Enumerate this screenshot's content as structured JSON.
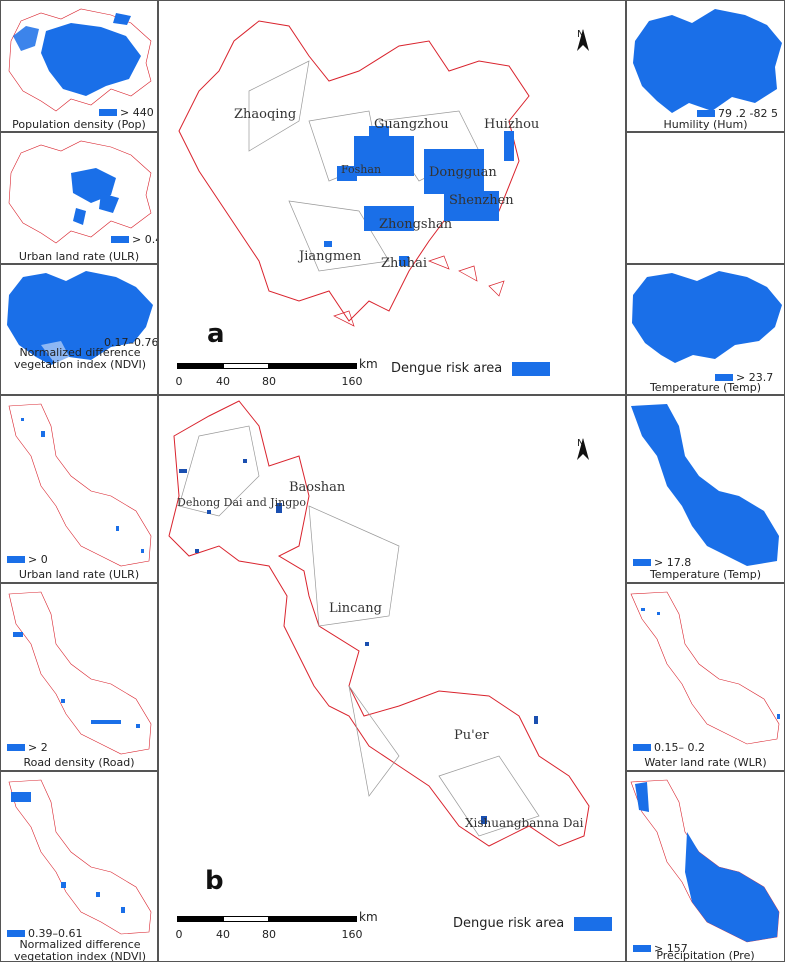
{
  "colors": {
    "risk": "#1a6fe8",
    "boundary_outer": "#d9232d",
    "boundary_inner": "#999999"
  },
  "panel_a": {
    "letter": "a",
    "cities": [
      "Zhaoqing",
      "Guangzhou",
      "Huizhou",
      "Foshan",
      "Dongguan",
      "Shenzhen",
      "Zhongshan",
      "Jiangmen",
      "Zhuhai"
    ],
    "scale": {
      "ticks": [
        "0",
        "40",
        "80",
        "160"
      ],
      "unit": "km"
    },
    "north": "N",
    "risk_legend": "Dengue risk area",
    "left": [
      {
        "caption": "Population density (Pop)",
        "legend": "> 440"
      },
      {
        "caption": "Urban land rate (ULR)",
        "legend": "> 0.4"
      },
      {
        "caption": "Normalized difference vegetation index (NDVI)",
        "legend": "0.17–0.76"
      }
    ],
    "right": [
      {
        "caption": "Humility (Hum)",
        "legend": "79 .2 -82 5"
      },
      {
        "caption": "",
        "legend": ""
      },
      {
        "caption": "Temperature (Temp)",
        "legend": "> 23.7"
      }
    ]
  },
  "panel_b": {
    "letter": "b",
    "regions": [
      "Dehong Dai and Jingpo",
      "Baoshan",
      "Lincang",
      "Pu'er",
      "Xishuangbanna Dai"
    ],
    "scale": {
      "ticks": [
        "0",
        "40",
        "80",
        "160"
      ],
      "unit": "km"
    },
    "north": "N",
    "risk_legend": "Dengue risk area",
    "left": [
      {
        "caption": "Urban land rate (ULR)",
        "legend": "> 0"
      },
      {
        "caption": "Road density (Road)",
        "legend": "> 2"
      },
      {
        "caption": "Normalized difference vegetation index (NDVI)",
        "legend": "0.39–0.61"
      }
    ],
    "right": [
      {
        "caption": "Temperature (Temp)",
        "legend": "> 17.8"
      },
      {
        "caption": "Water land rate (WLR)",
        "legend": "0.15– 0.2"
      },
      {
        "caption": "Precipitation (Pre)",
        "legend": "> 157"
      }
    ]
  }
}
